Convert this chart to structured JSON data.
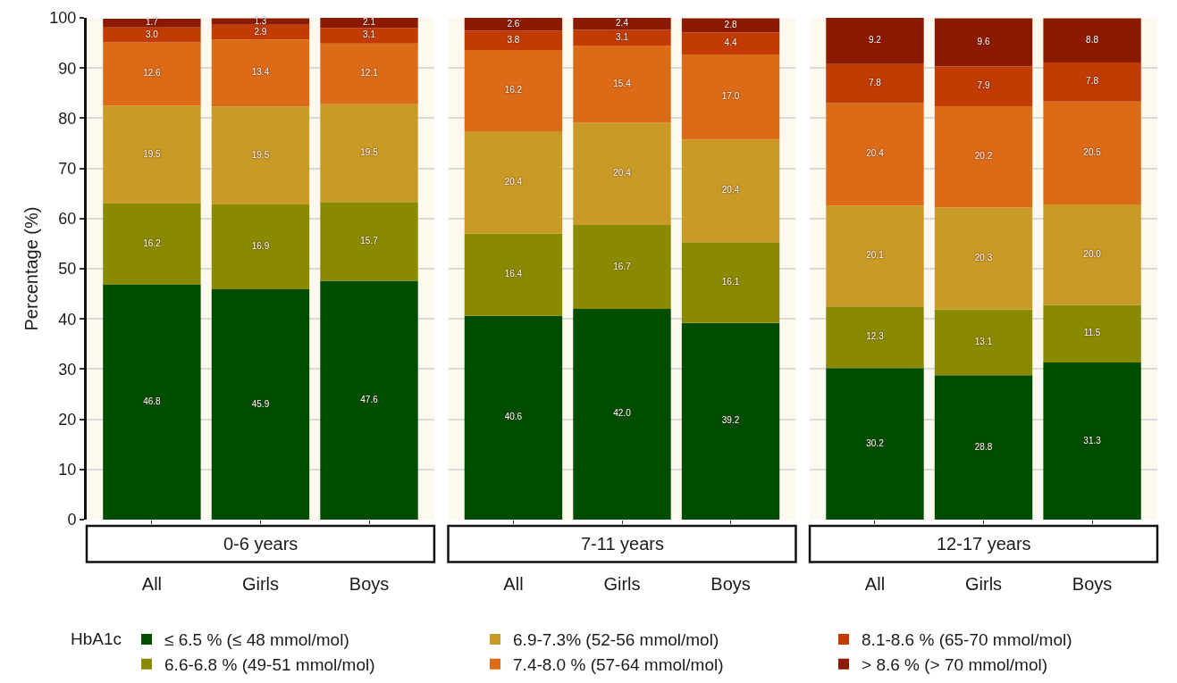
{
  "chart_data": [
    {
      "type": "bar",
      "title": "0-6 years",
      "ylabel": "Percentage (%)",
      "legend_title": "HbA1c",
      "legend": "bottom",
      "stacked": true,
      "grid": "y",
      "categories": [
        "All",
        "Girls",
        "Boys"
      ],
      "ylim": [
        0,
        100
      ],
      "yticks": [
        0,
        10,
        20,
        30,
        40,
        50,
        60,
        70,
        80,
        90,
        100
      ],
      "series": [
        {
          "name": "≤ 6.5 % (≤ 48 mmol/mol)",
          "color": "#004d00",
          "values": [
            46.8,
            45.9,
            47.6
          ],
          "value_labels": [
            "46.8",
            "45.9",
            "47.6"
          ]
        },
        {
          "name": "6.6-6.8 % (49-51 mmol/mol)",
          "color": "#8a8a00",
          "values": [
            16.2,
            16.9,
            15.7
          ],
          "value_labels": [
            "16.2",
            "16.9",
            "15.7"
          ]
        },
        {
          "name": "6.9-7.3% (52-56 mmol/mol)",
          "color": "#c99a26",
          "values": [
            19.5,
            19.5,
            19.5
          ],
          "value_labels": [
            "19.5",
            "19.5",
            "19.5"
          ]
        },
        {
          "name": "7.4-8.0 % (57-64 mmol/mol)",
          "color": "#dc6b17",
          "values": [
            12.6,
            13.4,
            12.1
          ],
          "value_labels": [
            "12.6",
            "13.4",
            "12.1"
          ]
        },
        {
          "name": "8.1-8.6 % (65-70 mmol/mol)",
          "color": "#c13b02",
          "values": [
            3.0,
            2.9,
            3.1
          ],
          "value_labels": [
            "3.0",
            "2.9",
            "3.1"
          ]
        },
        {
          "name": "> 8.6 % (> 70 mmol/mol)",
          "color": "#8b1a00",
          "values": [
            1.7,
            1.3,
            2.1
          ],
          "value_labels": [
            "1.7",
            "1.3",
            "2.1"
          ]
        }
      ]
    },
    {
      "type": "bar",
      "title": "7-11 years",
      "stacked": true,
      "grid": "y",
      "tick_labels": "x",
      "categories": [
        "All",
        "Girls",
        "Boys"
      ],
      "ylim": [
        0,
        100
      ],
      "yticks": [
        0,
        10,
        20,
        30,
        40,
        50,
        60,
        70,
        80,
        90,
        100
      ],
      "series": [
        {
          "name": "≤ 6.5 % (≤ 48 mmol/mol)",
          "color": "#004d00",
          "values": [
            40.6,
            42.0,
            39.2
          ],
          "value_labels": [
            "40.6",
            "42.0",
            "39.2"
          ]
        },
        {
          "name": "6.6-6.8 % (49-51 mmol/mol)",
          "color": "#8a8a00",
          "values": [
            16.4,
            16.7,
            16.1
          ],
          "value_labels": [
            "16.4",
            "16.7",
            "16.1"
          ]
        },
        {
          "name": "6.9-7.3% (52-56 mmol/mol)",
          "color": "#c99a26",
          "values": [
            20.4,
            20.4,
            20.4
          ],
          "value_labels": [
            "20.4",
            "20.4",
            "20.4"
          ]
        },
        {
          "name": "7.4-8.0 % (57-64 mmol/mol)",
          "color": "#dc6b17",
          "values": [
            16.2,
            15.4,
            17.0
          ],
          "value_labels": [
            "16.2",
            "15.4",
            "17.0"
          ]
        },
        {
          "name": "8.1-8.6 % (65-70 mmol/mol)",
          "color": "#c13b02",
          "values": [
            3.8,
            3.1,
            4.4
          ],
          "value_labels": [
            "3.8",
            "3.1",
            "4.4"
          ]
        },
        {
          "name": "> 8.6 % (> 70 mmol/mol)",
          "color": "#8b1a00",
          "values": [
            2.6,
            2.4,
            2.8
          ],
          "value_labels": [
            "2.6",
            "2.4",
            "2.8"
          ]
        }
      ]
    },
    {
      "type": "bar",
      "title": "12-17 years",
      "stacked": true,
      "grid": "y",
      "tick_labels": "x",
      "categories": [
        "All",
        "Girls",
        "Boys"
      ],
      "ylim": [
        0,
        100
      ],
      "yticks": [
        0,
        10,
        20,
        30,
        40,
        50,
        60,
        70,
        80,
        90,
        100
      ],
      "series": [
        {
          "name": "≤ 6.5 % (≤ 48 mmol/mol)",
          "color": "#004d00",
          "values": [
            30.2,
            28.8,
            31.3
          ],
          "value_labels": [
            "30.2",
            "28.8",
            "31.3"
          ]
        },
        {
          "name": "6.6-6.8 % (49-51 mmol/mol)",
          "color": "#8a8a00",
          "values": [
            12.3,
            13.1,
            11.5
          ],
          "value_labels": [
            "12.3",
            "13.1",
            "11.5"
          ]
        },
        {
          "name": "6.9-7.3% (52-56 mmol/mol)",
          "color": "#c99a26",
          "values": [
            20.1,
            20.3,
            20.0
          ],
          "value_labels": [
            "20.1",
            "20.3",
            "20.0"
          ]
        },
        {
          "name": "7.4-8.0 % (57-64 mmol/mol)",
          "color": "#dc6b17",
          "values": [
            20.4,
            20.2,
            20.5
          ],
          "value_labels": [
            "20.4",
            "20.2",
            "20.5"
          ]
        },
        {
          "name": "8.1-8.6 % (65-70 mmol/mol)",
          "color": "#c13b02",
          "values": [
            7.8,
            7.9,
            7.8
          ],
          "value_labels": [
            "7.8",
            "7.9",
            "7.8"
          ]
        },
        {
          "name": "> 8.6 % (> 70 mmol/mol)",
          "color": "#8b1a00",
          "values": [
            9.2,
            9.6,
            8.8
          ],
          "value_labels": [
            "9.2",
            "9.6",
            "8.8"
          ]
        }
      ]
    }
  ]
}
